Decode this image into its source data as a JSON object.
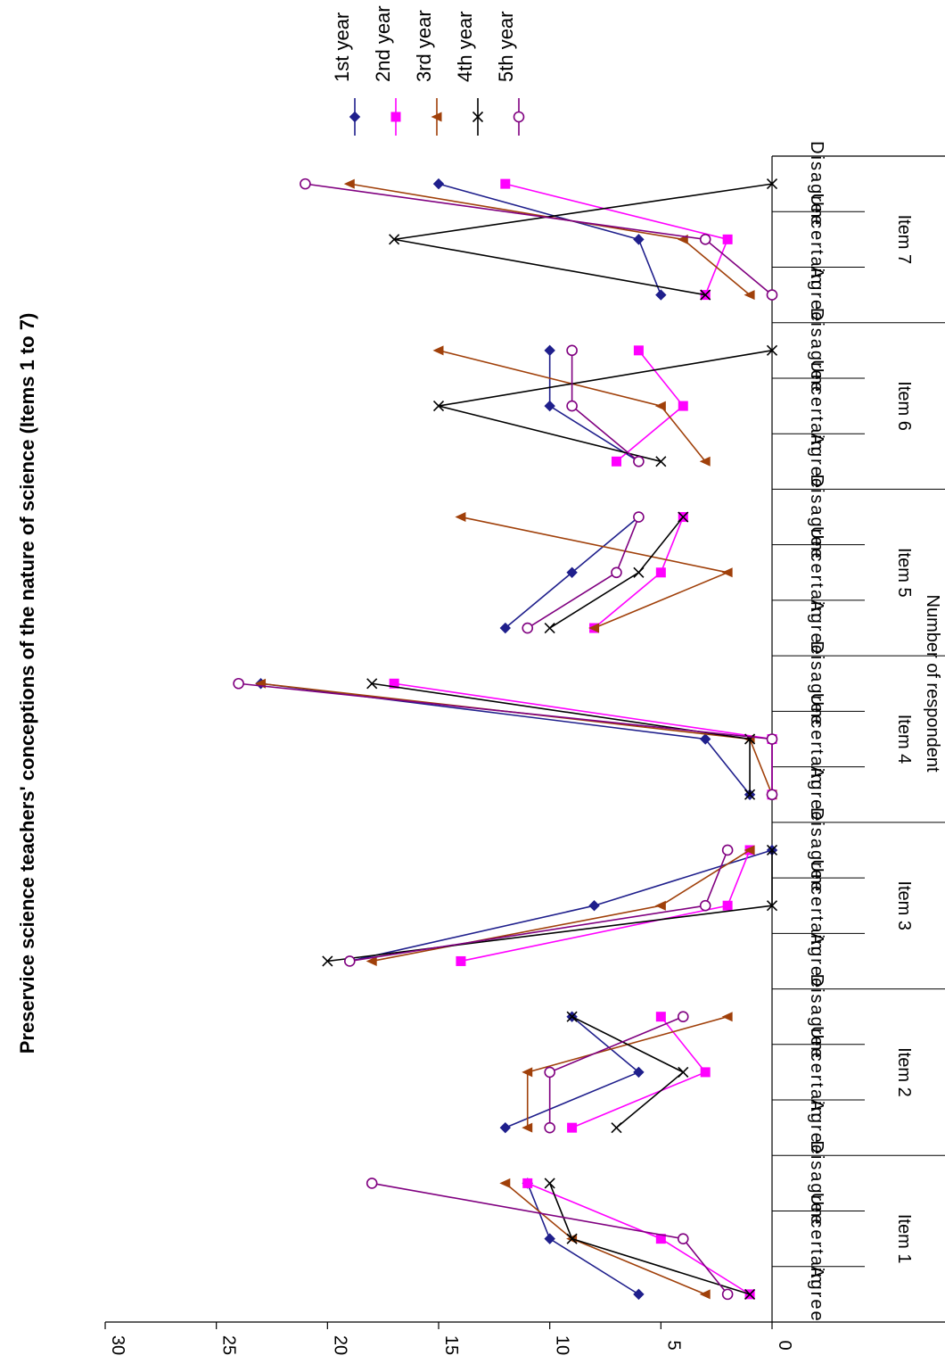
{
  "chart_data": {
    "type": "line",
    "orientation": "rotated-90-cw",
    "title": "Preservice science teachers' conceptions of the nature of science  (Items 1 to 7)",
    "xlabel": "",
    "ylabel": "Number of respondent",
    "ylim": [
      0,
      30
    ],
    "yticks": [
      0,
      5,
      10,
      15,
      20,
      25,
      30
    ],
    "grid": false,
    "legend_position": "top-right",
    "groups": [
      "Item 1",
      "Item 2",
      "Item 3",
      "Item 4",
      "Item 5",
      "Item 6",
      "Item 7"
    ],
    "categories": [
      "Agree",
      "Uncertain",
      "Disagree",
      "Agree",
      "Uncertain",
      "Disagree",
      "Agree",
      "Uncertain",
      "Disagree",
      "Agree",
      "Uncertain",
      "Disagree",
      "Agree",
      "Uncertain",
      "Disagree",
      "Agree",
      "Uncertain",
      "Disagree",
      "Agree",
      "Uncertain",
      "Disagree"
    ],
    "series": [
      {
        "name": "1st year",
        "color": "#1f1f8c",
        "marker": "diamond",
        "values": [
          6,
          10,
          11,
          12,
          6,
          9,
          19,
          8,
          0,
          1,
          3,
          23,
          12,
          9,
          6,
          6,
          10,
          10,
          5,
          6,
          15
        ]
      },
      {
        "name": "2nd year",
        "color": "#ff00ff",
        "marker": "square",
        "values": [
          1,
          5,
          11,
          9,
          3,
          5,
          14,
          2,
          1,
          0,
          0,
          17,
          8,
          5,
          4,
          7,
          4,
          6,
          3,
          2,
          12
        ]
      },
      {
        "name": "3rd year",
        "color": "#a0400a",
        "marker": "triangle",
        "values": [
          3,
          9,
          12,
          11,
          11,
          2,
          18,
          5,
          1,
          0,
          1,
          23,
          8,
          2,
          14,
          3,
          5,
          15,
          1,
          4,
          19
        ]
      },
      {
        "name": "4th year",
        "color": "#000000",
        "marker": "x",
        "values": [
          1,
          9,
          10,
          7,
          4,
          9,
          20,
          0,
          0,
          1,
          1,
          18,
          10,
          6,
          4,
          5,
          15,
          0,
          3,
          17,
          0
        ]
      },
      {
        "name": "5th year",
        "color": "#800080",
        "marker": "circle",
        "values": [
          2,
          4,
          18,
          10,
          10,
          4,
          19,
          3,
          2,
          0,
          0,
          24,
          11,
          7,
          6,
          6,
          9,
          9,
          0,
          3,
          21
        ]
      }
    ]
  }
}
